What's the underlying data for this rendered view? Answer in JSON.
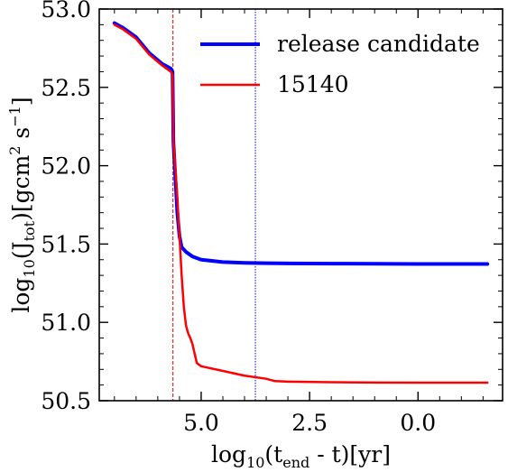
{
  "chart_data": {
    "type": "line",
    "xlabel_parts": {
      "pre": "log",
      "pre_sub": "10",
      "open": "(t",
      "sub": "end",
      "post": " - t)[yr]"
    },
    "ylabel_parts": {
      "pre": "log",
      "pre_sub": "10",
      "open": "(J",
      "sub": "tot",
      "mid": ")[gcm",
      "sup1": "2",
      "mid2": " s",
      "sup2": "−1",
      "post": "]"
    },
    "xlim": [
      7.35,
      -1.95
    ],
    "ylim": [
      50.5,
      53.0
    ],
    "x_axis_reversed": true,
    "xticks": [
      5.0,
      2.5,
      0.0
    ],
    "xtick_labels": [
      "5.0",
      "2.5",
      "0.0"
    ],
    "yticks": [
      50.5,
      51.0,
      51.5,
      52.0,
      52.5,
      53.0
    ],
    "ytick_labels": [
      "50.5",
      "51.0",
      "51.5",
      "52.0",
      "52.5",
      "53.0"
    ],
    "grid": false,
    "legend_position": "top-right",
    "vlines": [
      {
        "x": 5.65,
        "color": "#e00000",
        "style": "dashed"
      },
      {
        "x": 3.75,
        "color": "#0000cc",
        "style": "dotted"
      }
    ],
    "series": [
      {
        "name": "release candidate",
        "color": "#0000ff",
        "width": 4,
        "points": [
          [
            7.0,
            52.91
          ],
          [
            6.8,
            52.88
          ],
          [
            6.5,
            52.82
          ],
          [
            6.2,
            52.72
          ],
          [
            5.9,
            52.65
          ],
          [
            5.7,
            52.62
          ],
          [
            5.66,
            52.6
          ],
          [
            5.64,
            52.15
          ],
          [
            5.6,
            51.95
          ],
          [
            5.55,
            51.7
          ],
          [
            5.5,
            51.55
          ],
          [
            5.45,
            51.48
          ],
          [
            5.35,
            51.45
          ],
          [
            5.2,
            51.42
          ],
          [
            5.0,
            51.4
          ],
          [
            4.5,
            51.385
          ],
          [
            4.0,
            51.38
          ],
          [
            3.5,
            51.378
          ],
          [
            3.0,
            51.376
          ],
          [
            2.0,
            51.375
          ],
          [
            1.0,
            51.374
          ],
          [
            0.0,
            51.373
          ],
          [
            -1.0,
            51.373
          ],
          [
            -1.6,
            51.373
          ]
        ]
      },
      {
        "name": "15140",
        "color": "#ff0000",
        "width": 2.5,
        "points": [
          [
            7.0,
            52.9
          ],
          [
            6.8,
            52.87
          ],
          [
            6.5,
            52.81
          ],
          [
            6.2,
            52.71
          ],
          [
            5.9,
            52.64
          ],
          [
            5.7,
            52.6
          ],
          [
            5.66,
            52.58
          ],
          [
            5.64,
            52.15
          ],
          [
            5.6,
            52.0
          ],
          [
            5.55,
            51.8
          ],
          [
            5.5,
            51.55
          ],
          [
            5.45,
            51.3
          ],
          [
            5.4,
            51.1
          ],
          [
            5.35,
            50.98
          ],
          [
            5.3,
            50.93
          ],
          [
            5.25,
            50.9
          ],
          [
            5.2,
            50.86
          ],
          [
            5.15,
            50.8
          ],
          [
            5.1,
            50.74
          ],
          [
            5.0,
            50.72
          ],
          [
            4.5,
            50.69
          ],
          [
            4.0,
            50.66
          ],
          [
            3.5,
            50.64
          ],
          [
            3.3,
            50.625
          ],
          [
            3.0,
            50.622
          ],
          [
            2.0,
            50.618
          ],
          [
            1.0,
            50.616
          ],
          [
            0.0,
            50.615
          ],
          [
            -1.0,
            50.615
          ],
          [
            -1.6,
            50.615
          ]
        ]
      }
    ]
  }
}
